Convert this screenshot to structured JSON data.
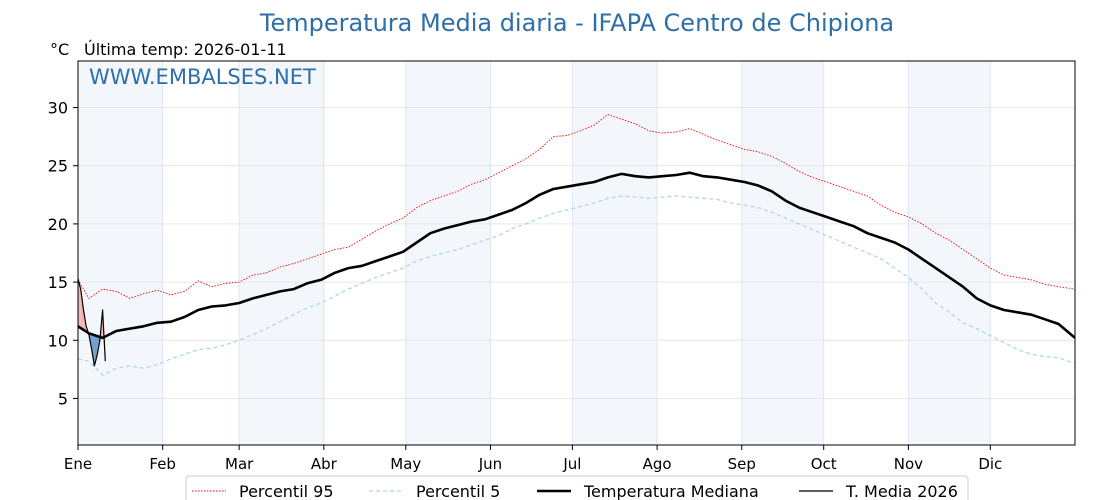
{
  "chart_data": {
    "type": "line",
    "title": "Temperatura Media diaria - IFAPA Centro de Chipiona",
    "unit_label": "°C",
    "subtitle": "Última temp: 2026-01-11",
    "watermark": "WWW.EMBALSES.NET",
    "ylim": [
      1,
      34
    ],
    "yticks": [
      5,
      10,
      15,
      20,
      25,
      30
    ],
    "grid": true,
    "legend_position": "bottom-center",
    "x_unit": "day of year",
    "months": [
      {
        "label": "Ene",
        "start_day": 1
      },
      {
        "label": "Feb",
        "start_day": 32
      },
      {
        "label": "Mar",
        "start_day": 60
      },
      {
        "label": "Abr",
        "start_day": 91
      },
      {
        "label": "May",
        "start_day": 121
      },
      {
        "label": "Jun",
        "start_day": 152
      },
      {
        "label": "Jul",
        "start_day": 182
      },
      {
        "label": "Ago",
        "start_day": 213
      },
      {
        "label": "Sep",
        "start_day": 244
      },
      {
        "label": "Oct",
        "start_day": 274
      },
      {
        "label": "Nov",
        "start_day": 305
      },
      {
        "label": "Dic",
        "start_day": 335
      }
    ],
    "x_end_day": 366,
    "series": [
      {
        "name": "Percentil 95",
        "color": "#ff0000",
        "style": "dotted",
        "points": [
          [
            1,
            15.2
          ],
          [
            5,
            13.6
          ],
          [
            10,
            14.4
          ],
          [
            15,
            14.2
          ],
          [
            20,
            13.6
          ],
          [
            25,
            14.0
          ],
          [
            30,
            14.3
          ],
          [
            35,
            13.9
          ],
          [
            40,
            14.2
          ],
          [
            45,
            15.1
          ],
          [
            50,
            14.6
          ],
          [
            55,
            14.9
          ],
          [
            60,
            15.0
          ],
          [
            65,
            15.6
          ],
          [
            70,
            15.8
          ],
          [
            75,
            16.3
          ],
          [
            80,
            16.6
          ],
          [
            85,
            17.0
          ],
          [
            90,
            17.4
          ],
          [
            95,
            17.8
          ],
          [
            100,
            18.0
          ],
          [
            105,
            18.7
          ],
          [
            110,
            19.4
          ],
          [
            115,
            20.0
          ],
          [
            120,
            20.5
          ],
          [
            125,
            21.4
          ],
          [
            130,
            22.0
          ],
          [
            135,
            22.4
          ],
          [
            140,
            22.8
          ],
          [
            145,
            23.4
          ],
          [
            150,
            23.8
          ],
          [
            155,
            24.4
          ],
          [
            160,
            25.0
          ],
          [
            165,
            25.6
          ],
          [
            170,
            26.4
          ],
          [
            175,
            27.5
          ],
          [
            180,
            27.6
          ],
          [
            185,
            28.0
          ],
          [
            190,
            28.5
          ],
          [
            195,
            29.4
          ],
          [
            200,
            29.0
          ],
          [
            205,
            28.6
          ],
          [
            210,
            28.0
          ],
          [
            215,
            27.8
          ],
          [
            220,
            27.9
          ],
          [
            225,
            28.2
          ],
          [
            230,
            27.7
          ],
          [
            235,
            27.2
          ],
          [
            240,
            26.8
          ],
          [
            245,
            26.4
          ],
          [
            250,
            26.2
          ],
          [
            255,
            25.8
          ],
          [
            260,
            25.2
          ],
          [
            265,
            24.5
          ],
          [
            270,
            24.0
          ],
          [
            275,
            23.6
          ],
          [
            280,
            23.2
          ],
          [
            285,
            22.8
          ],
          [
            290,
            22.4
          ],
          [
            295,
            21.6
          ],
          [
            300,
            21.0
          ],
          [
            305,
            20.6
          ],
          [
            310,
            20.0
          ],
          [
            315,
            19.2
          ],
          [
            320,
            18.6
          ],
          [
            325,
            17.8
          ],
          [
            330,
            17.0
          ],
          [
            335,
            16.2
          ],
          [
            340,
            15.6
          ],
          [
            345,
            15.4
          ],
          [
            350,
            15.2
          ],
          [
            355,
            14.8
          ],
          [
            360,
            14.6
          ],
          [
            366,
            14.4
          ]
        ]
      },
      {
        "name": "Percentil 5",
        "color": "#add8e6",
        "style": "dashed",
        "points": [
          [
            1,
            8.4
          ],
          [
            5,
            8.2
          ],
          [
            10,
            7.0
          ],
          [
            15,
            7.6
          ],
          [
            20,
            7.8
          ],
          [
            25,
            7.6
          ],
          [
            30,
            7.9
          ],
          [
            35,
            8.4
          ],
          [
            40,
            8.8
          ],
          [
            45,
            9.2
          ],
          [
            50,
            9.3
          ],
          [
            55,
            9.6
          ],
          [
            60,
            10.0
          ],
          [
            65,
            10.5
          ],
          [
            70,
            11.0
          ],
          [
            75,
            11.6
          ],
          [
            80,
            12.2
          ],
          [
            85,
            12.8
          ],
          [
            90,
            13.2
          ],
          [
            95,
            13.8
          ],
          [
            100,
            14.4
          ],
          [
            105,
            14.9
          ],
          [
            110,
            15.4
          ],
          [
            115,
            15.8
          ],
          [
            120,
            16.2
          ],
          [
            125,
            16.8
          ],
          [
            130,
            17.2
          ],
          [
            135,
            17.5
          ],
          [
            140,
            17.8
          ],
          [
            145,
            18.2
          ],
          [
            150,
            18.6
          ],
          [
            155,
            19.0
          ],
          [
            160,
            19.6
          ],
          [
            165,
            20.0
          ],
          [
            170,
            20.5
          ],
          [
            175,
            20.9
          ],
          [
            180,
            21.2
          ],
          [
            185,
            21.5
          ],
          [
            190,
            21.8
          ],
          [
            195,
            22.2
          ],
          [
            200,
            22.4
          ],
          [
            205,
            22.3
          ],
          [
            210,
            22.2
          ],
          [
            215,
            22.3
          ],
          [
            220,
            22.4
          ],
          [
            225,
            22.3
          ],
          [
            230,
            22.2
          ],
          [
            235,
            22.1
          ],
          [
            240,
            21.8
          ],
          [
            245,
            21.6
          ],
          [
            250,
            21.4
          ],
          [
            255,
            21.0
          ],
          [
            260,
            20.5
          ],
          [
            265,
            20.0
          ],
          [
            270,
            19.5
          ],
          [
            275,
            19.0
          ],
          [
            280,
            18.5
          ],
          [
            285,
            18.0
          ],
          [
            290,
            17.5
          ],
          [
            295,
            17.0
          ],
          [
            300,
            16.2
          ],
          [
            305,
            15.4
          ],
          [
            310,
            14.4
          ],
          [
            315,
            13.2
          ],
          [
            320,
            12.4
          ],
          [
            325,
            11.5
          ],
          [
            330,
            11.0
          ],
          [
            335,
            10.4
          ],
          [
            340,
            9.8
          ],
          [
            345,
            9.2
          ],
          [
            350,
            8.8
          ],
          [
            355,
            8.6
          ],
          [
            360,
            8.5
          ],
          [
            366,
            8.0
          ]
        ]
      },
      {
        "name": "Temperatura Mediana",
        "color": "#000000",
        "style": "solid-thick",
        "points": [
          [
            1,
            11.2
          ],
          [
            5,
            10.6
          ],
          [
            10,
            10.2
          ],
          [
            15,
            10.8
          ],
          [
            20,
            11.0
          ],
          [
            25,
            11.2
          ],
          [
            30,
            11.5
          ],
          [
            35,
            11.6
          ],
          [
            40,
            12.0
          ],
          [
            45,
            12.6
          ],
          [
            50,
            12.9
          ],
          [
            55,
            13.0
          ],
          [
            60,
            13.2
          ],
          [
            65,
            13.6
          ],
          [
            70,
            13.9
          ],
          [
            75,
            14.2
          ],
          [
            80,
            14.4
          ],
          [
            85,
            14.9
          ],
          [
            90,
            15.2
          ],
          [
            95,
            15.8
          ],
          [
            100,
            16.2
          ],
          [
            105,
            16.4
          ],
          [
            110,
            16.8
          ],
          [
            115,
            17.2
          ],
          [
            120,
            17.6
          ],
          [
            125,
            18.4
          ],
          [
            130,
            19.2
          ],
          [
            135,
            19.6
          ],
          [
            140,
            19.9
          ],
          [
            145,
            20.2
          ],
          [
            150,
            20.4
          ],
          [
            155,
            20.8
          ],
          [
            160,
            21.2
          ],
          [
            165,
            21.8
          ],
          [
            170,
            22.5
          ],
          [
            175,
            23.0
          ],
          [
            180,
            23.2
          ],
          [
            185,
            23.4
          ],
          [
            190,
            23.6
          ],
          [
            195,
            24.0
          ],
          [
            200,
            24.3
          ],
          [
            205,
            24.1
          ],
          [
            210,
            24.0
          ],
          [
            215,
            24.1
          ],
          [
            220,
            24.2
          ],
          [
            225,
            24.4
          ],
          [
            230,
            24.1
          ],
          [
            235,
            24.0
          ],
          [
            240,
            23.8
          ],
          [
            245,
            23.6
          ],
          [
            250,
            23.3
          ],
          [
            255,
            22.8
          ],
          [
            260,
            22.0
          ],
          [
            265,
            21.4
          ],
          [
            270,
            21.0
          ],
          [
            275,
            20.6
          ],
          [
            280,
            20.2
          ],
          [
            285,
            19.8
          ],
          [
            290,
            19.2
          ],
          [
            295,
            18.8
          ],
          [
            300,
            18.4
          ],
          [
            305,
            17.8
          ],
          [
            310,
            17.0
          ],
          [
            315,
            16.2
          ],
          [
            320,
            15.4
          ],
          [
            325,
            14.6
          ],
          [
            330,
            13.6
          ],
          [
            335,
            13.0
          ],
          [
            340,
            12.6
          ],
          [
            345,
            12.4
          ],
          [
            350,
            12.2
          ],
          [
            355,
            11.8
          ],
          [
            360,
            11.4
          ],
          [
            366,
            10.2
          ]
        ]
      },
      {
        "name": "T. Media 2026",
        "color": "#000000",
        "style": "solid-thin",
        "points": [
          [
            1,
            15.3
          ],
          [
            2,
            14.4
          ],
          [
            3,
            12.6
          ],
          [
            4,
            11.2
          ],
          [
            5,
            10.5
          ],
          [
            6,
            9.2
          ],
          [
            7,
            7.8
          ],
          [
            8,
            8.7
          ],
          [
            9,
            10.0
          ],
          [
            10,
            12.6
          ],
          [
            11,
            8.2
          ]
        ]
      }
    ]
  }
}
